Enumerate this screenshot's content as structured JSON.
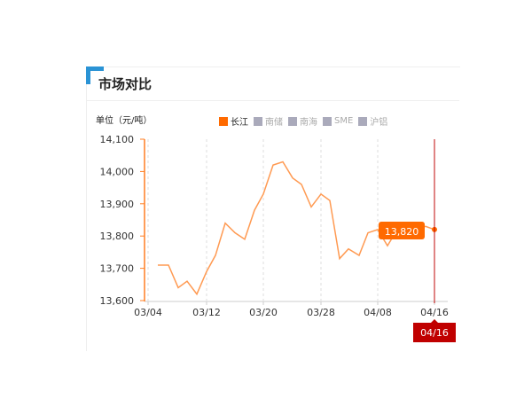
{
  "header": {
    "title": "市场对比"
  },
  "colors": {
    "accent": "#2a93d5",
    "line": "#ff9a52",
    "axis": "#ff7f24",
    "marker": "#c00000",
    "label": "#ff6a00"
  },
  "chart_data": {
    "type": "line",
    "ylabel": "单位（元/吨）",
    "legend": [
      {
        "name": "长江",
        "active": true,
        "color": "#ff6a00"
      },
      {
        "name": "南储",
        "active": false
      },
      {
        "name": "南海",
        "active": false
      },
      {
        "name": "SME",
        "active": false
      },
      {
        "name": "沪铝",
        "active": false
      }
    ],
    "legend_position": "top",
    "ylim": [
      13600,
      14100
    ],
    "yticks": [
      "14,100",
      "14,000",
      "13,900",
      "13,800",
      "13,700",
      "13,600"
    ],
    "xticks": [
      "03/04",
      "03/12",
      "03/20",
      "03/28",
      "04/08",
      "04/16"
    ],
    "series": [
      {
        "name": "长江",
        "x": [
          "03/05",
          "03/06",
          "03/07",
          "03/08",
          "03/11",
          "03/12",
          "03/13",
          "03/14",
          "03/15",
          "03/18",
          "03/19",
          "03/20",
          "03/21",
          "03/22",
          "03/25",
          "03/26",
          "03/27",
          "03/28",
          "03/29",
          "04/01",
          "04/02",
          "04/03",
          "04/04",
          "04/08",
          "04/09",
          "04/10",
          "04/11",
          "04/12",
          "04/15",
          "04/16"
        ],
        "values": [
          13710,
          13710,
          13640,
          13660,
          13620,
          13690,
          13740,
          13840,
          13810,
          13790,
          13880,
          13930,
          14020,
          14030,
          13980,
          13960,
          13890,
          13930,
          13910,
          13730,
          13760,
          13740,
          13810,
          13820,
          13770,
          13820,
          13820,
          13820,
          13830,
          13820
        ]
      }
    ],
    "tooltip": {
      "value": "13,820",
      "date": "04/16"
    },
    "grid": "vertical dashed"
  }
}
